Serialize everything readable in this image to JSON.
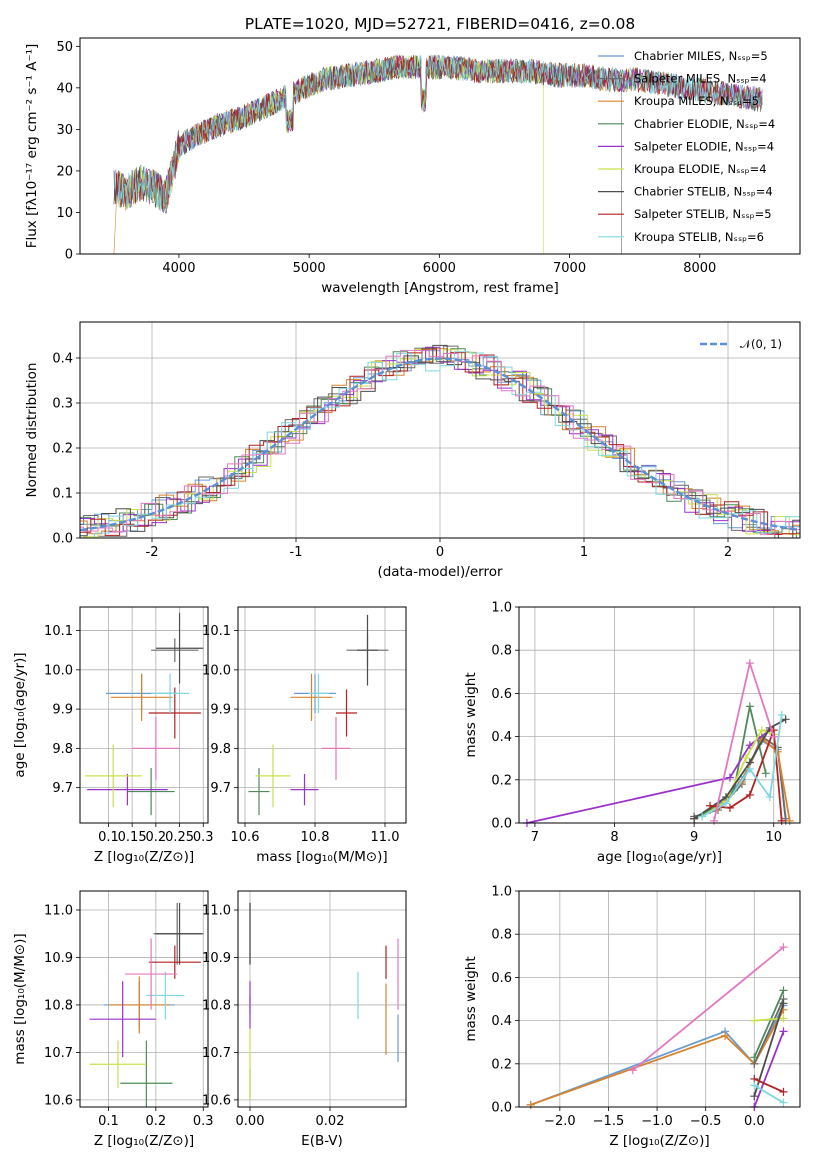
{
  "figure": {
    "title": "PLATE=1020, MJD=52721, FIBERID=0416, z=0.08",
    "colors": {
      "Chabrier MILES": "#6a9bd1",
      "Salpeter MILES": "#6b6b6b",
      "Kroupa MILES": "#d9822b",
      "Chabrier ELODIE": "#4e8a5a",
      "Salpeter ELODIE": "#9932cc",
      "Kroupa ELODIE": "#c8e04b",
      "Chabrier STELIB": "#4d4d4d",
      "Salpeter STELIB": "#b22222",
      "Kroupa STELIB": "#7fd7e0",
      "pink": "#e377c2",
      "gaussian": "#5b8fd6"
    }
  },
  "chart_data": [
    {
      "id": "spectrum",
      "type": "line",
      "title": "PLATE=1020, MJD=52721, FIBERID=0416, z=0.08",
      "xlabel": "wavelength [Angstrom, rest frame]",
      "ylabel": "Flux [fλ10⁻¹⁷ erg cm⁻² s⁻¹ A⁻¹]",
      "xlim": [
        3240,
        8770
      ],
      "ylim": [
        0,
        52
      ],
      "xticks": [
        4000,
        5000,
        6000,
        7000,
        8000
      ],
      "yticks": [
        0,
        10,
        20,
        30,
        40,
        50
      ],
      "legend_position": "top-right",
      "series": [
        {
          "name": "Chabrier MILES, Nₛₛₚ=5"
        },
        {
          "name": "Salpeter MILES, Nₛₛₚ=4"
        },
        {
          "name": "Kroupa MILES, Nₛₛₚ=5"
        },
        {
          "name": "Chabrier ELODIE, Nₛₛₚ=4"
        },
        {
          "name": "Salpeter ELODIE, Nₛₛₚ=4"
        },
        {
          "name": "Kroupa ELODIE, Nₛₛₚ=4"
        },
        {
          "name": "Chabrier STELIB, Nₛₛₚ=4"
        },
        {
          "name": "Salpeter STELIB, Nₛₛₚ=5"
        },
        {
          "name": "Kroupa STELIB, Nₛₛₚ=6"
        }
      ],
      "continuum": {
        "x": [
          3500,
          3600,
          3700,
          3800,
          3900,
          4000,
          4100,
          4300,
          4500,
          4700,
          4900,
          5100,
          5300,
          5500,
          5700,
          5900,
          6100,
          6300,
          6500,
          6700,
          6900,
          7100,
          7300,
          7500,
          7700,
          7900,
          8100,
          8300,
          8500
        ],
        "y": [
          16,
          15,
          17,
          16,
          14,
          26,
          28,
          31,
          33,
          36,
          39,
          42,
          43,
          44,
          45,
          45,
          45,
          44,
          44,
          44,
          43,
          43,
          42,
          42,
          41,
          40,
          39,
          38,
          37
        ]
      }
    },
    {
      "id": "residuals",
      "type": "bar",
      "xlabel": "(data-model)/error",
      "ylabel": "Normed distribution",
      "xlim": [
        -2.5,
        2.5
      ],
      "ylim": [
        0,
        0.48
      ],
      "xticks": [
        -2,
        -1,
        0,
        1,
        2
      ],
      "yticks": [
        0.0,
        0.1,
        0.2,
        0.3,
        0.4
      ],
      "grid": true,
      "legend_position": "top-right",
      "gaussian_label": "𝒩(0, 1)"
    },
    {
      "id": "age-vs-Z",
      "type": "scatter",
      "xlabel": "Z [log₁₀(Z/Z⊙)]",
      "ylabel": "age  [log₁₀(age/yr)]",
      "xlim": [
        0.04,
        0.31
      ],
      "ylim": [
        9.61,
        10.16
      ],
      "xticks": [
        0.1,
        0.15,
        0.2,
        0.25,
        0.3
      ],
      "xticklabels": [
        "0.1",
        "0.15",
        "0.2",
        "0.25",
        "0.3"
      ],
      "yticks": [
        9.7,
        9.8,
        9.9,
        10.0,
        10.1
      ],
      "grid": true,
      "series": [
        {
          "name": "Chabrier MILES",
          "x": 0.17,
          "y": 9.94,
          "xerr": 0.075,
          "yerr": 0.05
        },
        {
          "name": "Salpeter MILES",
          "x": 0.24,
          "y": 10.05,
          "xerr": 0.05,
          "yerr": 0.03
        },
        {
          "name": "Kroupa MILES",
          "x": 0.17,
          "y": 9.93,
          "xerr": 0.065,
          "yerr": 0.06
        },
        {
          "name": "Chabrier ELODIE",
          "x": 0.19,
          "y": 9.69,
          "xerr": 0.05,
          "yerr": 0.06
        },
        {
          "name": "Salpeter ELODIE",
          "x": 0.14,
          "y": 9.695,
          "xerr": 0.085,
          "yerr": 0.04
        },
        {
          "name": "Kroupa ELODIE",
          "x": 0.11,
          "y": 9.73,
          "xerr": 0.06,
          "yerr": 0.08
        },
        {
          "name": "Chabrier STELIB",
          "x": 0.25,
          "y": 10.055,
          "xerr": 0.05,
          "yerr": 0.09
        },
        {
          "name": "Salpeter STELIB",
          "x": 0.24,
          "y": 9.89,
          "xerr": 0.055,
          "yerr": 0.065
        },
        {
          "name": "Kroupa STELIB",
          "x": 0.23,
          "y": 9.94,
          "xerr": 0.04,
          "yerr": 0.05
        },
        {
          "name": "pink",
          "x": 0.2,
          "y": 9.8,
          "xerr": 0.05,
          "yerr": 0.08
        }
      ]
    },
    {
      "id": "age-vs-mass",
      "type": "scatter",
      "xlabel": "mass [log₁₀(M/M⊙)]",
      "xlim": [
        10.58,
        11.06
      ],
      "ylim": [
        9.61,
        10.16
      ],
      "xticks": [
        10.6,
        10.8,
        11.0
      ],
      "xticklabels": [
        "10.6",
        "10.8",
        "11.0"
      ],
      "yticks": [
        9.7,
        9.8,
        9.9,
        10.0,
        10.1
      ],
      "grid": true,
      "series": [
        {
          "name": "Chabrier MILES",
          "x": 10.8,
          "y": 9.94,
          "xerr": 0.06,
          "yerr": 0.05
        },
        {
          "name": "Salpeter MILES",
          "x": 10.95,
          "y": 10.05,
          "xerr": 0.06,
          "yerr": 0.04
        },
        {
          "name": "Kroupa MILES",
          "x": 10.79,
          "y": 9.93,
          "xerr": 0.06,
          "yerr": 0.06
        },
        {
          "name": "Chabrier ELODIE",
          "x": 10.64,
          "y": 9.69,
          "xerr": 0.03,
          "yerr": 0.06
        },
        {
          "name": "Salpeter ELODIE",
          "x": 10.77,
          "y": 9.695,
          "xerr": 0.04,
          "yerr": 0.04
        },
        {
          "name": "Kroupa ELODIE",
          "x": 10.68,
          "y": 9.73,
          "xerr": 0.05,
          "yerr": 0.08
        },
        {
          "name": "Chabrier STELIB",
          "x": 10.95,
          "y": 10.05,
          "xerr": 0.03,
          "yerr": 0.09
        },
        {
          "name": "Salpeter STELIB",
          "x": 10.89,
          "y": 9.89,
          "xerr": 0.03,
          "yerr": 0.06
        },
        {
          "name": "Kroupa STELIB",
          "x": 10.81,
          "y": 9.94,
          "xerr": 0.03,
          "yerr": 0.05
        },
        {
          "name": "pink",
          "x": 10.86,
          "y": 9.8,
          "xerr": 0.04,
          "yerr": 0.08
        }
      ]
    },
    {
      "id": "weight-vs-age",
      "type": "line",
      "xlabel": "age  [log₁₀(age/yr)]",
      "ylabel": "mass weight",
      "xlim": [
        6.8,
        10.33
      ],
      "ylim": [
        0,
        1.0
      ],
      "xticks": [
        7,
        8,
        9,
        10
      ],
      "yticks": [
        0.0,
        0.2,
        0.4,
        0.6,
        0.8,
        1.0
      ],
      "grid": true,
      "series": [
        {
          "name": "Chabrier MILES",
          "x": [
            9.0,
            9.3,
            9.6,
            9.85,
            10.05,
            10.15
          ],
          "y": [
            0.02,
            0.08,
            0.2,
            0.38,
            0.34,
            0.01
          ]
        },
        {
          "name": "Salpeter MILES",
          "x": [
            9.0,
            9.3,
            9.6,
            9.85,
            10.05,
            10.15
          ],
          "y": [
            0.03,
            0.06,
            0.18,
            0.4,
            0.35,
            0.02
          ]
        },
        {
          "name": "Kroupa MILES",
          "x": [
            9.0,
            9.3,
            9.6,
            9.85,
            10.05,
            10.2
          ],
          "y": [
            0.02,
            0.07,
            0.19,
            0.39,
            0.33,
            0.01
          ]
        },
        {
          "name": "Chabrier ELODIE",
          "x": [
            9.0,
            9.2,
            9.5,
            9.7,
            9.9
          ],
          "y": [
            0.02,
            0.06,
            0.15,
            0.54,
            0.23
          ]
        },
        {
          "name": "Salpeter ELODIE",
          "x": [
            6.9,
            9.45,
            9.7,
            9.95
          ],
          "y": [
            0.0,
            0.21,
            0.36,
            0.43
          ]
        },
        {
          "name": "Kroupa ELODIE",
          "x": [
            9.1,
            9.4,
            9.65,
            9.85,
            10.0
          ],
          "y": [
            0.03,
            0.1,
            0.3,
            0.43,
            0.41
          ]
        },
        {
          "name": "Chabrier STELIB",
          "x": [
            9.0,
            9.4,
            9.7,
            9.95,
            10.15
          ],
          "y": [
            0.02,
            0.12,
            0.28,
            0.44,
            0.48
          ]
        },
        {
          "name": "Salpeter STELIB",
          "x": [
            9.2,
            9.45,
            9.7,
            10.0,
            10.1
          ],
          "y": [
            0.08,
            0.07,
            0.13,
            0.43,
            0.01
          ]
        },
        {
          "name": "Kroupa STELIB",
          "x": [
            9.1,
            9.4,
            9.7,
            9.95,
            10.1
          ],
          "y": [
            0.03,
            0.09,
            0.25,
            0.12,
            0.5
          ]
        },
        {
          "name": "pink",
          "x": [
            9.25,
            9.7,
            10.0
          ],
          "y": [
            0.01,
            0.74,
            0.4
          ]
        }
      ]
    },
    {
      "id": "mass-vs-Z",
      "type": "scatter",
      "xlabel": "Z [log₁₀(Z/Z⊙)]",
      "ylabel": "mass [log₁₀(M/M⊙)]",
      "xlim": [
        0.04,
        0.31
      ],
      "ylim": [
        10.585,
        11.04
      ],
      "xticks": [
        0.1,
        0.2,
        0.3
      ],
      "xticklabels": [
        "0.1",
        "0.2",
        "0.3"
      ],
      "yticks": [
        10.6,
        10.7,
        10.8,
        10.9,
        11.0
      ],
      "grid": true,
      "series": [
        {
          "name": "Chabrier MILES",
          "x": 0.165,
          "y": 10.8,
          "xerr": 0.075,
          "yerr": 0.05
        },
        {
          "name": "Salpeter MILES",
          "x": 0.245,
          "y": 10.95,
          "xerr": 0.05,
          "yerr": 0.065
        },
        {
          "name": "Kroupa MILES",
          "x": 0.165,
          "y": 10.8,
          "xerr": 0.065,
          "yerr": 0.06
        },
        {
          "name": "Chabrier ELODIE",
          "x": 0.18,
          "y": 10.635,
          "xerr": 0.055,
          "yerr": 0.09
        },
        {
          "name": "Salpeter ELODIE",
          "x": 0.13,
          "y": 10.77,
          "xerr": 0.07,
          "yerr": 0.08
        },
        {
          "name": "Kroupa ELODIE",
          "x": 0.12,
          "y": 10.675,
          "xerr": 0.06,
          "yerr": 0.05
        },
        {
          "name": "Chabrier STELIB",
          "x": 0.25,
          "y": 10.95,
          "xerr": 0.05,
          "yerr": 0.065
        },
        {
          "name": "Salpeter STELIB",
          "x": 0.24,
          "y": 10.89,
          "xerr": 0.055,
          "yerr": 0.035
        },
        {
          "name": "Kroupa STELIB",
          "x": 0.22,
          "y": 10.82,
          "xerr": 0.04,
          "yerr": 0.05
        },
        {
          "name": "pink",
          "x": 0.19,
          "y": 10.865,
          "xerr": 0.055,
          "yerr": 0.075
        }
      ]
    },
    {
      "id": "mass-vs-EBV",
      "type": "scatter",
      "xlabel": "E(B-V)",
      "xlim": [
        -0.003,
        0.039
      ],
      "ylim": [
        10.585,
        11.04
      ],
      "xticks": [
        0.0,
        0.02
      ],
      "xticklabels": [
        "0.00",
        "0.02"
      ],
      "yticks": [
        10.6,
        10.7,
        10.8,
        10.9,
        11.0
      ],
      "grid": true,
      "series": [
        {
          "name": "Chabrier MILES",
          "x": 0.0,
          "y": 10.8,
          "xerr": 0,
          "yerr": 0.02
        },
        {
          "name": "Salpeter MILES",
          "x": 0.0,
          "y": 10.95,
          "xerr": 0,
          "yerr": 0.065
        },
        {
          "name": "Kroupa MILES",
          "x": 0.034,
          "y": 10.77,
          "xerr": 0,
          "yerr": 0.075
        },
        {
          "name": "Chabrier ELODIE",
          "x": 0.0,
          "y": 10.635,
          "xerr": 0,
          "yerr": 0.03
        },
        {
          "name": "Salpeter ELODIE",
          "x": 0.0,
          "y": 10.8,
          "xerr": 0,
          "yerr": 0.05
        },
        {
          "name": "Kroupa ELODIE",
          "x": 0.0,
          "y": 10.675,
          "xerr": 0,
          "yerr": 0.075
        },
        {
          "name": "Chabrier STELIB",
          "x": 0.0,
          "y": 10.95,
          "xerr": 0,
          "yerr": 0.065
        },
        {
          "name": "Salpeter STELIB",
          "x": 0.034,
          "y": 10.89,
          "xerr": 0,
          "yerr": 0.035
        },
        {
          "name": "Kroupa STELIB",
          "x": 0.027,
          "y": 10.82,
          "xerr": 0,
          "yerr": 0.05
        },
        {
          "name": "pink",
          "x": 0.037,
          "y": 10.865,
          "xerr": 0,
          "yerr": 0.075
        },
        {
          "name": "Chabrier MILES",
          "x": 0.037,
          "y": 10.73,
          "xerr": 0,
          "yerr": 0.05
        }
      ]
    },
    {
      "id": "weight-vs-Z",
      "type": "line",
      "xlabel": "Z [log₁₀(Z/Z⊙)]",
      "ylabel": "mass weight",
      "xlim": [
        -2.42,
        0.47
      ],
      "ylim": [
        0,
        1.0
      ],
      "xticks": [
        -2.0,
        -1.5,
        -1.0,
        -0.5,
        0.0
      ],
      "xticklabels": [
        "−2.0",
        "−1.5",
        "−1.0",
        "−0.5",
        "0.0"
      ],
      "yticks": [
        0.0,
        0.2,
        0.4,
        0.6,
        0.8,
        1.0
      ],
      "grid": true,
      "series": [
        {
          "name": "Chabrier MILES",
          "x": [
            -2.3,
            -0.3,
            0.0,
            0.3
          ],
          "y": [
            0.01,
            0.35,
            0.2,
            0.47
          ]
        },
        {
          "name": "Kroupa MILES",
          "x": [
            -2.3,
            -0.3,
            0.0,
            0.3
          ],
          "y": [
            0.01,
            0.33,
            0.2,
            0.45
          ]
        },
        {
          "name": "Salpeter MILES",
          "x": [
            0.0,
            0.3
          ],
          "y": [
            0.2,
            0.5
          ]
        },
        {
          "name": "Chabrier ELODIE",
          "x": [
            0.0,
            0.3
          ],
          "y": [
            0.23,
            0.54
          ]
        },
        {
          "name": "Salpeter ELODIE",
          "x": [
            0.0,
            0.3
          ],
          "y": [
            0.0,
            0.35
          ]
        },
        {
          "name": "Kroupa ELODIE",
          "x": [
            0.0,
            0.3
          ],
          "y": [
            0.4,
            0.41
          ]
        },
        {
          "name": "Chabrier STELIB",
          "x": [
            0.0,
            0.3
          ],
          "y": [
            0.05,
            0.48
          ]
        },
        {
          "name": "Salpeter STELIB",
          "x": [
            0.0,
            0.3
          ],
          "y": [
            0.13,
            0.07
          ]
        },
        {
          "name": "Kroupa STELIB",
          "x": [
            0.0,
            0.3
          ],
          "y": [
            0.1,
            0.02
          ]
        },
        {
          "name": "pink",
          "x": [
            -1.25,
            0.3
          ],
          "y": [
            0.17,
            0.74
          ]
        }
      ]
    }
  ]
}
